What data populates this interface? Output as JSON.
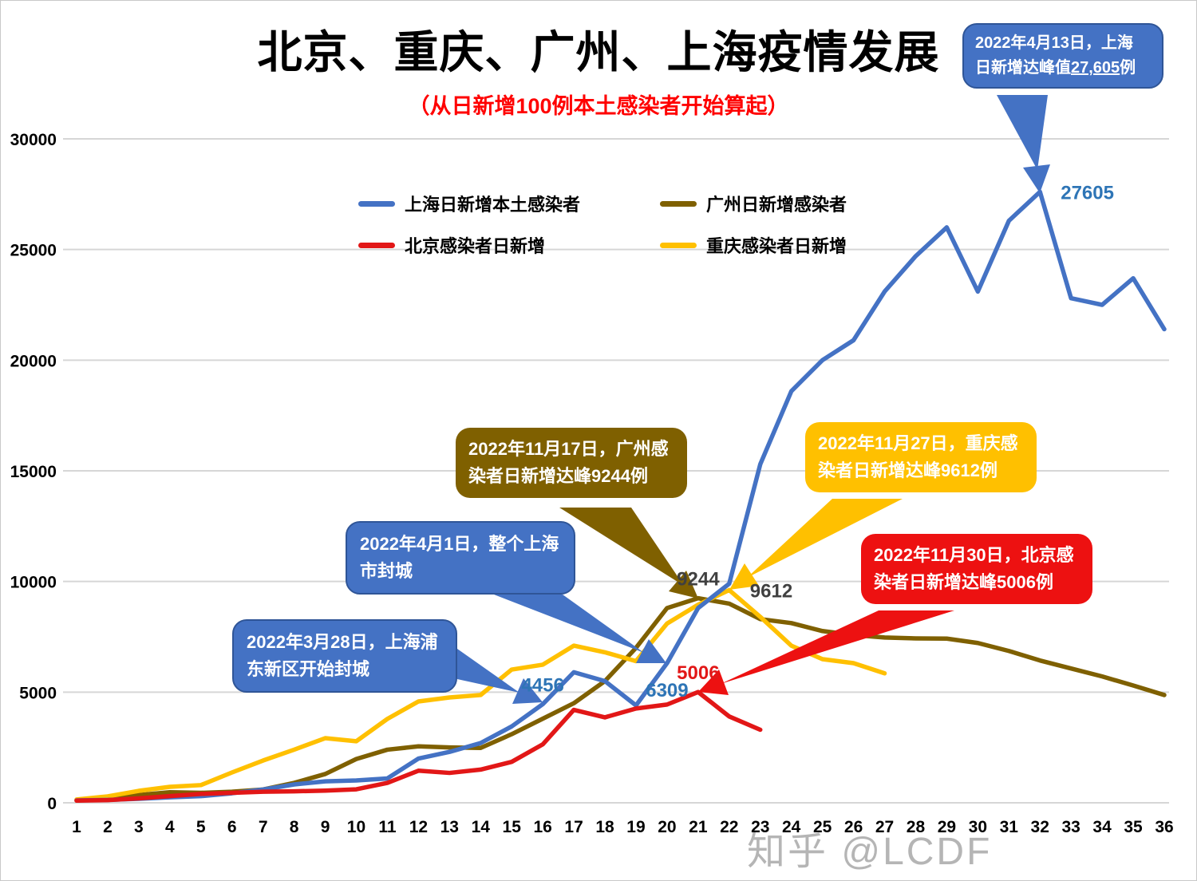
{
  "title": "北京、重庆、广州、上海疫情发展",
  "subtitle": "（从日新增100例本土感染者开始算起）",
  "watermark": "知乎 @LCDF",
  "colors": {
    "shanghai": "#4472C4",
    "guangzhou": "#7F6000",
    "beijing": "#E21717",
    "chongqing": "#FFC000",
    "grid": "#D6D6D6",
    "label_blue": "#2E75B6",
    "label_gray": "#404040"
  },
  "legend": [
    {
      "label": "上海日新增本土感染者",
      "color": "#4472C4"
    },
    {
      "label": "广州日新增感染者",
      "color": "#7F6000"
    },
    {
      "label": "北京感染者日新增",
      "color": "#E21717"
    },
    {
      "label": "重庆感染者日新增",
      "color": "#FFC000"
    }
  ],
  "chart_data": {
    "type": "line",
    "title": "北京、重庆、广州、上海疫情发展",
    "subtitle": "（从日新增100例本土感染者开始算起）",
    "xlabel": "",
    "ylabel": "",
    "grid": true,
    "legend_position": "inside-top",
    "ylim": [
      0,
      30000
    ],
    "y_ticks": [
      0,
      5000,
      10000,
      15000,
      20000,
      25000,
      30000
    ],
    "x": [
      1,
      2,
      3,
      4,
      5,
      6,
      7,
      8,
      9,
      10,
      11,
      12,
      13,
      14,
      15,
      16,
      17,
      18,
      19,
      20,
      21,
      22,
      23,
      24,
      25,
      26,
      27,
      28,
      29,
      30,
      31,
      32,
      33,
      34,
      35,
      36
    ],
    "series": [
      {
        "id": "shanghai",
        "name": "上海日新增本土感染者",
        "color": "#4472C4",
        "values": [
          110,
          130,
          180,
          250,
          300,
          430,
          600,
          830,
          970,
          1010,
          1100,
          2000,
          2300,
          2700,
          3450,
          4456,
          5900,
          5500,
          4400,
          6309,
          8800,
          9900,
          15300,
          18600,
          20000,
          20900,
          23100,
          24700,
          26000,
          23100,
          26300,
          27605,
          22800,
          22500,
          23700,
          21400
        ]
      },
      {
        "id": "guangzhou",
        "name": "广州日新增感染者",
        "color": "#7F6000",
        "values": [
          100,
          200,
          350,
          480,
          450,
          500,
          600,
          900,
          1300,
          1980,
          2400,
          2550,
          2500,
          2480,
          3100,
          3800,
          4500,
          5500,
          7000,
          8800,
          9244,
          9000,
          8300,
          8120,
          7760,
          7580,
          7470,
          7430,
          7420,
          7220,
          6860,
          6430,
          6070,
          5710,
          5300,
          4870
        ]
      },
      {
        "id": "beijing",
        "name": "北京感染者日新增",
        "color": "#E21717",
        "values": [
          100,
          120,
          200,
          300,
          400,
          450,
          500,
          520,
          550,
          610,
          900,
          1450,
          1350,
          1500,
          1850,
          2640,
          4200,
          3860,
          4260,
          4440,
          5006,
          3900,
          3300
        ]
      },
      {
        "id": "chongqing",
        "name": "重庆感染者日新增",
        "color": "#FFC000",
        "values": [
          150,
          290,
          540,
          720,
          800,
          1370,
          1910,
          2400,
          2920,
          2780,
          3790,
          4580,
          4760,
          4870,
          6020,
          6240,
          7100,
          6800,
          6400,
          8100,
          8950,
          9612,
          8400,
          7100,
          6490,
          6310,
          5850
        ]
      }
    ],
    "point_labels": [
      {
        "text": "4456",
        "series": "shanghai",
        "x": 16,
        "value": 4456,
        "color": "#2E75B6",
        "placement": "above"
      },
      {
        "text": "6309",
        "series": "shanghai",
        "x": 20,
        "value": 6309,
        "color": "#2E75B6",
        "placement": "below"
      },
      {
        "text": "5006",
        "series": "beijing",
        "x": 21,
        "value": 5006,
        "color": "#E21717",
        "placement": "above"
      },
      {
        "text": "9244",
        "series": "guangzhou",
        "x": 21,
        "value": 9244,
        "color": "#404040",
        "placement": "above"
      },
      {
        "text": "9612",
        "series": "chongqing",
        "x": 22,
        "value": 9612,
        "color": "#404040",
        "placement": "right"
      },
      {
        "text": "27605",
        "series": "shanghai",
        "x": 32,
        "value": 27605,
        "color": "#2E75B6",
        "placement": "right"
      }
    ]
  },
  "callouts": {
    "shanghai_peak": {
      "line1": "2022年4月13日，上海",
      "line2_prefix": "日新增达峰值",
      "value": "27,605",
      "line2_suffix": "例"
    },
    "guangzhou_peak": {
      "text": "2022年11月17日，广州感染者日新增达峰9244例"
    },
    "chongqing_peak": {
      "text": "2022年11月27日，重庆感染者日新增达峰9612例"
    },
    "beijing_peak": {
      "text": "2022年11月30日，北京感染者日新增达峰5006例"
    },
    "shanghai_lockdown": {
      "text": "2022年4月1日，整个上海市封城"
    },
    "pudong_lockdown": {
      "text": "2022年3月28日，上海浦东新区开始封城"
    }
  }
}
